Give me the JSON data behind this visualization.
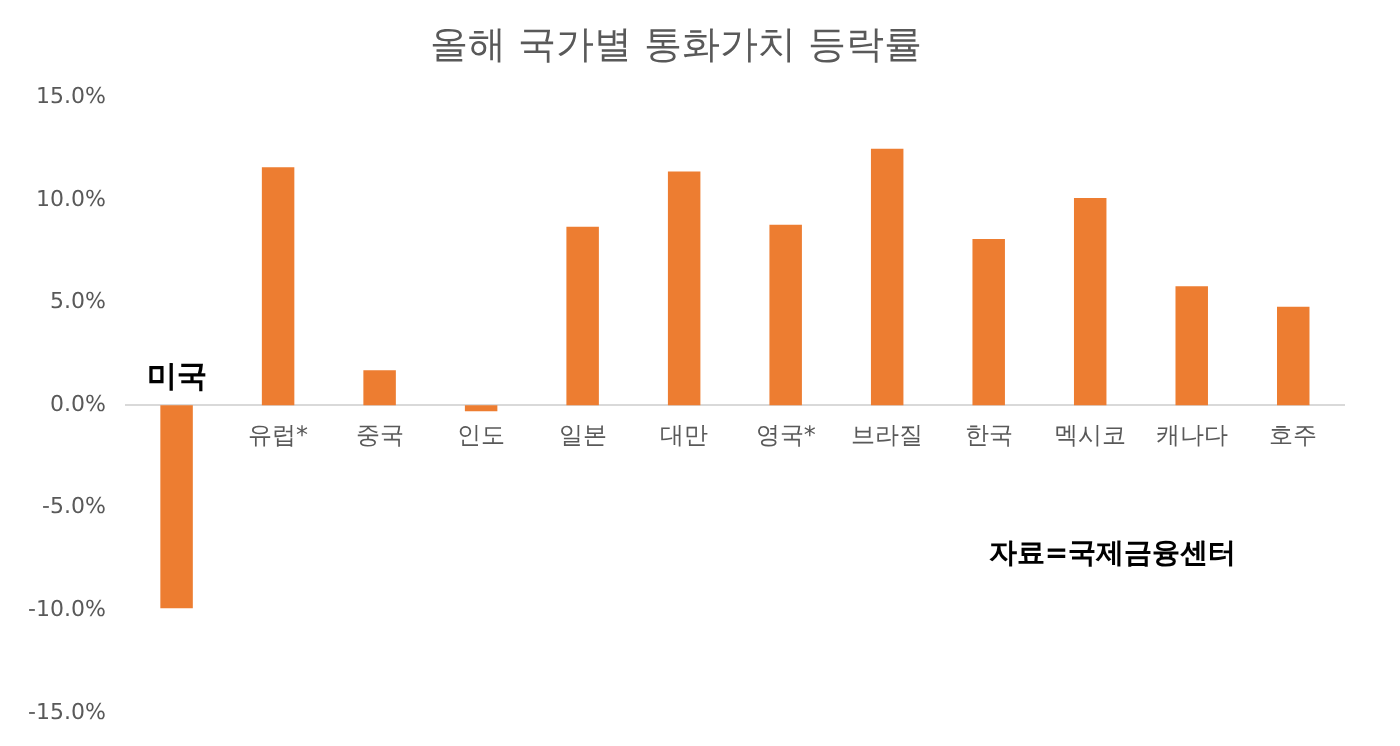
{
  "chart_data": {
    "type": "bar",
    "title": "올해 국가별 통화가치 등락률",
    "categories": [
      "미국",
      "유럽*",
      "중국",
      "인도",
      "일본",
      "대만",
      "영국*",
      "브라질",
      "한국",
      "멕시코",
      "캐나다",
      "호주"
    ],
    "values": [
      -9.9,
      11.6,
      1.7,
      -0.3,
      8.7,
      11.4,
      8.8,
      12.5,
      8.1,
      10.1,
      5.8,
      4.8
    ],
    "color": "#ed7d31",
    "ylim": [
      -15,
      15
    ],
    "yticks": [
      {
        "value": -15,
        "label": "-15.0%"
      },
      {
        "value": -10,
        "label": "-10.0%"
      },
      {
        "value": -5,
        "label": "-5.0%"
      },
      {
        "value": 0,
        "label": "0.0%"
      },
      {
        "value": 5,
        "label": "5.0%"
      },
      {
        "value": 10,
        "label": "10.0%"
      },
      {
        "value": 15,
        "label": "15.0%"
      }
    ],
    "grid": false,
    "annotations": [
      "자료=국제금융센터"
    ]
  }
}
